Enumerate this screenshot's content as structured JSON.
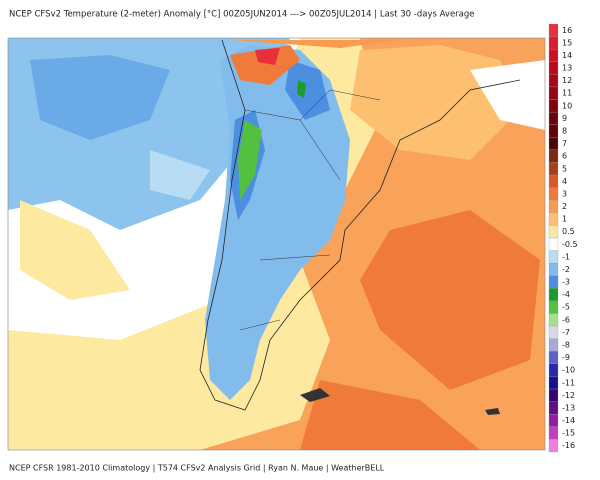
{
  "header": {
    "title": "NCEP  CFSv2 Temperature (2-meter) Anomaly   [°C]  00Z05JUN2014  --->  00Z05JUL2014  |  Last 30  -days Average"
  },
  "footer": {
    "text": "NCEP  CFSR  1981-2010 Climatology  |  T574  CFSv2 Analysis Grid  |  Ryan N. Maue  |  WeatherBELL"
  },
  "legend": {
    "levels": [
      {
        "label": "16",
        "color": "#e8303a"
      },
      {
        "label": "15",
        "color": "#d81e2c"
      },
      {
        "label": "14",
        "color": "#c81222"
      },
      {
        "label": "13",
        "color": "#b80c1c"
      },
      {
        "label": "12",
        "color": "#a80818"
      },
      {
        "label": "11",
        "color": "#940614"
      },
      {
        "label": "10",
        "color": "#800410"
      },
      {
        "label": "9",
        "color": "#6c040c"
      },
      {
        "label": "8",
        "color": "#5a0408"
      },
      {
        "label": "7",
        "color": "#4a0606"
      },
      {
        "label": "6",
        "color": "#7a2a10"
      },
      {
        "label": "5",
        "color": "#a8401a"
      },
      {
        "label": "4",
        "color": "#d85a26"
      },
      {
        "label": "3",
        "color": "#f07a3a"
      },
      {
        "label": "2",
        "color": "#f89a52"
      },
      {
        "label": "1",
        "color": "#fcc070"
      },
      {
        "label": "0.5",
        "color": "#fde9a0"
      },
      {
        "label": "-0.5",
        "color": "#ffffff"
      },
      {
        "label": "-1",
        "color": "#b8dcf4"
      },
      {
        "label": "-2",
        "color": "#82bcec"
      },
      {
        "label": "-3",
        "color": "#4c8ee0"
      },
      {
        "label": "-4",
        "color": "#1c9c2a"
      },
      {
        "label": "-5",
        "color": "#54c040"
      },
      {
        "label": "-6",
        "color": "#a4e08c"
      },
      {
        "label": "-7",
        "color": "#d8d8e8"
      },
      {
        "label": "-8",
        "color": "#a8a8d8"
      },
      {
        "label": "-9",
        "color": "#6060c8"
      },
      {
        "label": "-10",
        "color": "#2828b0"
      },
      {
        "label": "-11",
        "color": "#18108c"
      },
      {
        "label": "-12",
        "color": "#300870"
      },
      {
        "label": "-13",
        "color": "#601080"
      },
      {
        "label": "-14",
        "color": "#9020a0"
      },
      {
        "label": "-15",
        "color": "#c040c0"
      },
      {
        "label": "-16",
        "color": "#f080e0"
      }
    ]
  }
}
